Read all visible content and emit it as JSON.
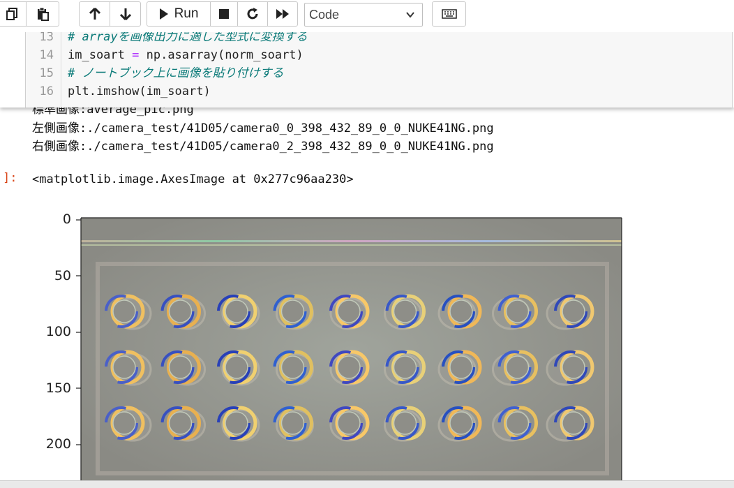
{
  "toolbar": {
    "run_label": "Run",
    "cell_type": "Code",
    "icons": [
      "copy-icon",
      "paste-icon",
      "move-up-icon",
      "move-down-icon",
      "run-icon",
      "stop-icon",
      "restart-icon",
      "fast-forward-icon",
      "chevron-down-icon",
      "keyboard-icon"
    ]
  },
  "code": {
    "lines": [
      {
        "num": "13",
        "text": "# arrayを画像出力に適した型式に変換する"
      },
      {
        "num": "14",
        "text_a": "im_soart ",
        "op": "=",
        "text_b": " np.asarray(norm_soart)"
      },
      {
        "num": "15",
        "text": "# ノートブック上に画像を貼り付けする"
      },
      {
        "num": "16",
        "text": "plt.imshow(im_soart)"
      }
    ]
  },
  "output": {
    "line0": "標準画像:average_pic.png",
    "line1": "左側画像:./camera_test/41D05/camera0_0_398_432_89_0_0_NUKE41NG.png",
    "line2": "右側画像:./camera_test/41D05/camera0_2_398_432_89_0_0_NUKE41NG.png",
    "prompt": "]:",
    "result": "<matplotlib.image.AxesImage at 0x277c96aa230>"
  },
  "chart_data": {
    "type": "image",
    "yticks": [
      "0",
      "50",
      "100",
      "150",
      "200"
    ],
    "grid": [
      3,
      9
    ]
  },
  "colors": {
    "comment": "#0a7a78",
    "operator": "#aa22ff",
    "prompt": "#d84315",
    "plot_bg": "#8f8e88"
  }
}
